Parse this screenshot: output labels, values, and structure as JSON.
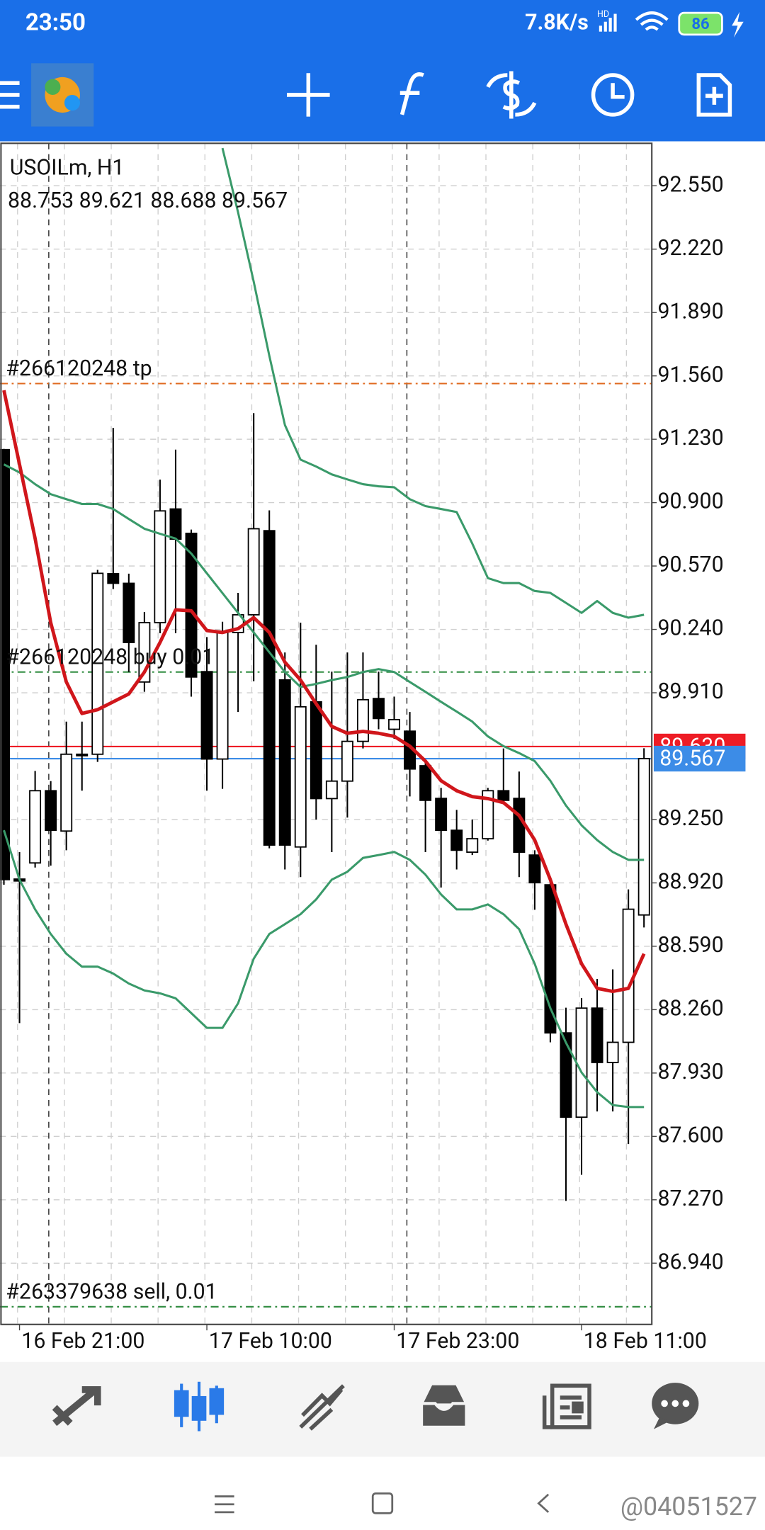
{
  "ui": {
    "status_time": "23:50",
    "net_speed": "7.8K/s",
    "signal_badge": "HD",
    "battery": "86",
    "watermark": "@04051527"
  },
  "chart_data": {
    "type": "candlestick",
    "title": "USOILm, H1",
    "subtitle": "88.753 89.621 88.688 89.567",
    "categories": [
      null,
      "16 Feb 21:00",
      null,
      null,
      null,
      null,
      null,
      null,
      null,
      null,
      null,
      null,
      null,
      "17 Feb 10:00",
      null,
      null,
      null,
      null,
      null,
      null,
      null,
      null,
      null,
      null,
      null,
      "17 Feb 23:00",
      null,
      null,
      null,
      null,
      null,
      null,
      null,
      null,
      null,
      null,
      null,
      "18 Feb 11:00",
      null,
      null,
      null,
      null
    ],
    "open": [
      91.176,
      88.94,
      89.024,
      89.4,
      89.19,
      89.59,
      89.59,
      90.53,
      90.48,
      89.966,
      90.275,
      90.867,
      90.74,
      90.02,
      89.565,
      90.224,
      90.316,
      90.754,
      89.977,
      89.107,
      89.863,
      89.359,
      89.45,
      89.657,
      89.88,
      89.72,
      89.71,
      89.53,
      89.36,
      89.194,
      89.08,
      89.15,
      89.4,
      89.36,
      89.065,
      88.91,
      88.139,
      87.7,
      88.268,
      87.985,
      88.09,
      88.753
    ],
    "high": [
      91.18,
      89.08,
      89.503,
      89.45,
      89.76,
      89.76,
      90.55,
      91.289,
      90.53,
      90.33,
      91.02,
      91.176,
      90.76,
      90.2,
      90.28,
      90.43,
      91.366,
      90.86,
      90.12,
      90.275,
      90.16,
      90.02,
      90.12,
      90.12,
      90.02,
      89.89,
      89.81,
      89.55,
      89.415,
      89.3,
      89.25,
      89.415,
      89.62,
      89.5,
      89.09,
      88.94,
      88.27,
      88.32,
      88.42,
      88.47,
      88.886,
      89.621
    ],
    "low": [
      88.91,
      88.19,
      89.0,
      89.01,
      89.09,
      89.4,
      89.55,
      90.45,
      90.018,
      89.915,
      90.22,
      90.22,
      89.89,
      89.4,
      89.41,
      89.81,
      89.97,
      89.1,
      88.99,
      88.95,
      89.25,
      89.08,
      89.26,
      89.62,
      89.72,
      89.67,
      89.37,
      89.08,
      88.896,
      88.99,
      89.065,
      89.14,
      89.33,
      88.95,
      88.78,
      88.09,
      87.264,
      87.4,
      87.73,
      87.73,
      87.56,
      88.688
    ],
    "close": [
      88.937,
      88.93,
      89.4,
      89.194,
      89.59,
      89.585,
      90.532,
      90.48,
      90.172,
      90.275,
      90.857,
      90.71,
      89.992,
      89.565,
      90.224,
      90.316,
      90.764,
      89.117,
      89.117,
      89.837,
      89.359,
      89.45,
      89.657,
      89.874,
      89.776,
      89.77,
      89.513,
      89.35,
      89.194,
      89.09,
      89.15,
      89.4,
      89.35,
      89.08,
      88.921,
      88.139,
      87.7,
      88.268,
      87.985,
      88.09,
      88.783,
      89.567
    ],
    "series": [
      {
        "color": "#3a9a6a",
        "values": [
          null,
          null,
          null,
          null,
          null,
          null,
          null,
          null,
          null,
          null,
          null,
          null,
          null,
          null,
          92.746,
          92.411,
          92.051,
          91.665,
          91.304,
          91.124,
          91.088,
          91.047,
          91.021,
          90.996,
          90.985,
          90.98,
          90.918,
          90.882,
          90.867,
          90.851,
          90.687,
          90.507,
          90.481,
          90.481,
          90.44,
          90.43,
          90.378,
          90.326,
          90.388,
          90.326,
          90.301,
          90.316
        ]
      },
      {
        "color": "#3a9a6a",
        "values": [
          91.099,
          91.057,
          90.996,
          90.944,
          90.918,
          90.893,
          90.893,
          90.867,
          90.815,
          90.764,
          90.738,
          90.713,
          90.635,
          90.532,
          90.429,
          90.326,
          90.224,
          90.121,
          90.018,
          89.94,
          89.956,
          89.976,
          89.992,
          90.018,
          90.033,
          90.018,
          89.966,
          89.915,
          89.863,
          89.812,
          89.76,
          89.683,
          89.632,
          89.596,
          89.554,
          89.452,
          89.323,
          89.22,
          89.143,
          89.081,
          89.04,
          89.04
        ]
      },
      {
        "color": "#3a9a6a",
        "values": [
          89.194,
          88.937,
          88.782,
          88.654,
          88.551,
          88.484,
          88.484,
          88.448,
          88.396,
          88.36,
          88.345,
          88.319,
          88.242,
          88.165,
          88.165,
          88.293,
          88.525,
          88.654,
          88.705,
          88.757,
          88.834,
          88.937,
          88.978,
          89.05,
          89.065,
          89.081,
          89.04,
          88.963,
          88.86,
          88.782,
          88.782,
          88.808,
          88.757,
          88.679,
          88.499,
          88.268,
          88.088,
          87.933,
          87.83,
          87.763,
          87.753,
          87.753
        ]
      },
      {
        "color": "#d0161b",
        "values": [
          91.485,
          91.099,
          90.713,
          90.275,
          89.966,
          89.802,
          89.822,
          89.863,
          89.904,
          90.018,
          90.172,
          90.342,
          90.337,
          90.234,
          90.224,
          90.244,
          90.301,
          90.224,
          90.069,
          89.976,
          89.853,
          89.735,
          89.699,
          89.709,
          89.699,
          89.683,
          89.632,
          89.554,
          89.452,
          89.4,
          89.369,
          89.359,
          89.338,
          89.271,
          89.143,
          88.937,
          88.705,
          88.499,
          88.371,
          88.355,
          88.371,
          88.551
        ]
      }
    ],
    "levels": [
      {
        "label": "#266120248 tp",
        "value": 91.52,
        "color": "#e06a1f"
      },
      {
        "label": "#266120248 buy 0.01",
        "value": 90.018,
        "color": "#2e8b3e"
      },
      {
        "label": "#263379638 sell, 0.01",
        "value": 86.713,
        "color": "#2e8b3e"
      }
    ],
    "price_labels": [
      {
        "value": 89.63,
        "label": "89.630",
        "color": "#ee1c25"
      },
      {
        "value": 89.567,
        "label": "89.567",
        "color": "#3c8ce7"
      }
    ],
    "ylim": [
      86.621,
      92.771
    ],
    "yticks": [
      {
        "value": 92.55,
        "label": "92.550"
      },
      {
        "value": 92.22,
        "label": "92.220"
      },
      {
        "value": 91.89,
        "label": "91.890"
      },
      {
        "value": 91.56,
        "label": "91.560"
      },
      {
        "value": 91.23,
        "label": "91.230"
      },
      {
        "value": 90.9,
        "label": "90.900"
      },
      {
        "value": 90.57,
        "label": "90.570"
      },
      {
        "value": 90.24,
        "label": "90.240"
      },
      {
        "value": 89.91,
        "label": "89.910"
      },
      {
        "value": 89.25,
        "label": "89.250"
      },
      {
        "value": 88.92,
        "label": "88.920"
      },
      {
        "value": 88.59,
        "label": "88.590"
      },
      {
        "value": 88.26,
        "label": "88.260"
      },
      {
        "value": 87.93,
        "label": "87.930"
      },
      {
        "value": 87.6,
        "label": "87.600"
      },
      {
        "value": 87.27,
        "label": "87.270"
      },
      {
        "value": 86.94,
        "label": "86.940"
      }
    ],
    "grid": true
  }
}
